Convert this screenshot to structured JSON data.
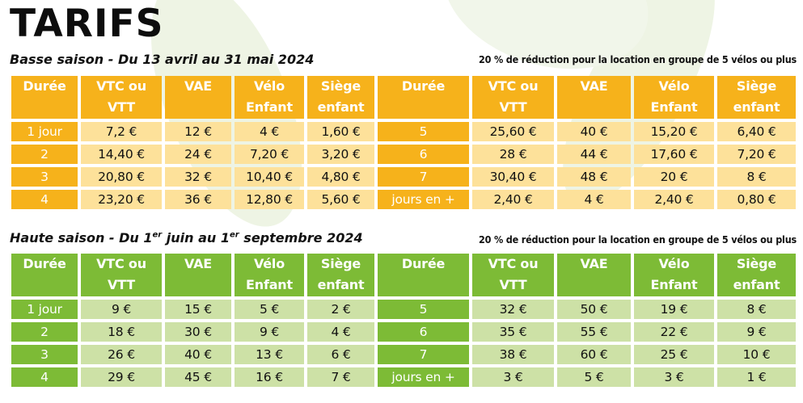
{
  "title": "TARIFS",
  "discount_note": "20 % de réduction pour la location en groupe de 5 vélos ou plus",
  "headers": [
    [
      "Durée"
    ],
    [
      "VTC ou",
      "VTT"
    ],
    [
      "VAE"
    ],
    [
      "Vélo",
      "Enfant"
    ],
    [
      "Siège",
      "enfant"
    ],
    [
      "Durée"
    ],
    [
      "VTC ou",
      "VTT"
    ],
    [
      "VAE"
    ],
    [
      "Vélo",
      "Enfant"
    ],
    [
      "Siège",
      "enfant"
    ]
  ],
  "low_season": {
    "label": "Basse saison - Du 13 avril au 31 mai 2024",
    "rows": [
      [
        "1 jour",
        "7,2 €",
        "12 €",
        "4 €",
        "1,60 €",
        "5",
        "25,60 €",
        "40 €",
        "15,20 €",
        "6,40 €"
      ],
      [
        "2",
        "14,40 €",
        "24 €",
        "7,20 €",
        "3,20 €",
        "6",
        "28 €",
        "44 €",
        "17,60 €",
        "7,20 €"
      ],
      [
        "3",
        "20,80 €",
        "32 €",
        "10,40 €",
        "4,80 €",
        "7",
        "30,40 €",
        "48 €",
        "20 €",
        "8 €"
      ],
      [
        "4",
        "23,20 €",
        "36 €",
        "12,80 €",
        "5,60 €",
        "jours en +",
        "2,40 €",
        "4 €",
        "2,40 €",
        "0,80 €"
      ]
    ]
  },
  "high_season": {
    "label_parts": [
      "Haute saison - Du 1",
      "er",
      " juin au 1",
      "er",
      " septembre 2024"
    ],
    "rows": [
      [
        "1 jour",
        "9 €",
        "15 €",
        "5 €",
        "2 €",
        "5",
        "32 €",
        "50 €",
        "19 €",
        "8 €"
      ],
      [
        "2",
        "18 €",
        "30 €",
        "9 €",
        "4 €",
        "6",
        "35 €",
        "55 €",
        "22 €",
        "9 €"
      ],
      [
        "3",
        "26 €",
        "40 €",
        "13 €",
        "6 €",
        "7",
        "38 €",
        "60 €",
        "25 €",
        "10 €"
      ],
      [
        "4",
        "29 €",
        "45 €",
        "16 €",
        "7 €",
        "jours en +",
        "3 €",
        "5 €",
        "3 €",
        "1 €"
      ]
    ]
  },
  "colors": {
    "orange_header": "#f6b21b",
    "orange_cell": "#fde19a",
    "green_header": "#7dbb36",
    "green_cell": "#cde1a6"
  }
}
